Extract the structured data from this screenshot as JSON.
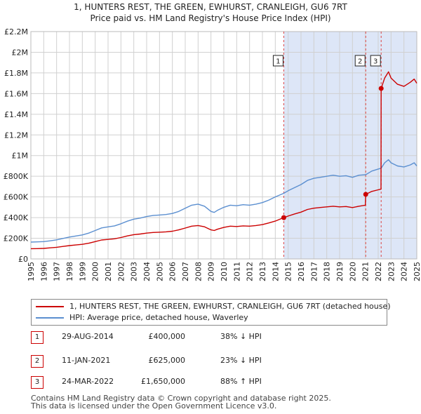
{
  "header": {
    "title_line1": "1, HUNTERS REST, THE GREEN, EWHURST, CRANLEIGH, GU6 7RT",
    "title_line2": "Price paid vs. HM Land Registry's House Price Index (HPI)"
  },
  "colors": {
    "price_paid": "#cc0000",
    "hpi": "#5b8fd0",
    "shade": "#dde6f7",
    "grid": "#d0d0d0",
    "vline": "#dd4444"
  },
  "chart_data": {
    "type": "line",
    "title": "Price paid vs. HM Land Registry's House Price Index (HPI)",
    "xlim": [
      1995,
      2025
    ],
    "ylim": [
      0,
      2200000
    ],
    "x_ticks": [
      "1995",
      "1996",
      "1997",
      "1998",
      "1999",
      "2000",
      "2001",
      "2002",
      "2003",
      "2004",
      "2005",
      "2006",
      "2007",
      "2008",
      "2009",
      "2010",
      "2011",
      "2012",
      "2013",
      "2014",
      "2015",
      "2016",
      "2017",
      "2018",
      "2019",
      "2020",
      "2021",
      "2022",
      "2023",
      "2024",
      "2025"
    ],
    "y_ticks": [
      {
        "value": 0,
        "label": "£0"
      },
      {
        "value": 200000,
        "label": "£200K"
      },
      {
        "value": 400000,
        "label": "£400K"
      },
      {
        "value": 600000,
        "label": "£600K"
      },
      {
        "value": 800000,
        "label": "£800K"
      },
      {
        "value": 1000000,
        "label": "£1M"
      },
      {
        "value": 1200000,
        "label": "£1.2M"
      },
      {
        "value": 1400000,
        "label": "£1.4M"
      },
      {
        "value": 1600000,
        "label": "£1.6M"
      },
      {
        "value": 1800000,
        "label": "£1.8M"
      },
      {
        "value": 2000000,
        "label": "£2M"
      },
      {
        "value": 2200000,
        "label": "£2.2M"
      }
    ],
    "shaded_range": [
      2014.66,
      2025
    ],
    "series": [
      {
        "name": "HPI: Average price, detached house, Waverley",
        "color": "#5b8fd0",
        "points": [
          [
            1995.0,
            163000
          ],
          [
            1995.5,
            165000
          ],
          [
            1996.0,
            168000
          ],
          [
            1996.5,
            175000
          ],
          [
            1997.0,
            185000
          ],
          [
            1997.5,
            198000
          ],
          [
            1998.0,
            212000
          ],
          [
            1998.5,
            222000
          ],
          [
            1999.0,
            232000
          ],
          [
            1999.5,
            250000
          ],
          [
            2000.0,
            275000
          ],
          [
            2000.5,
            300000
          ],
          [
            2001.0,
            310000
          ],
          [
            2001.5,
            320000
          ],
          [
            2002.0,
            340000
          ],
          [
            2002.5,
            365000
          ],
          [
            2003.0,
            385000
          ],
          [
            2003.5,
            395000
          ],
          [
            2004.0,
            410000
          ],
          [
            2004.5,
            420000
          ],
          [
            2005.0,
            425000
          ],
          [
            2005.5,
            430000
          ],
          [
            2006.0,
            440000
          ],
          [
            2006.5,
            460000
          ],
          [
            2007.0,
            490000
          ],
          [
            2007.5,
            520000
          ],
          [
            2008.0,
            530000
          ],
          [
            2008.5,
            510000
          ],
          [
            2009.0,
            460000
          ],
          [
            2009.25,
            450000
          ],
          [
            2009.5,
            470000
          ],
          [
            2010.0,
            500000
          ],
          [
            2010.5,
            520000
          ],
          [
            2011.0,
            515000
          ],
          [
            2011.5,
            525000
          ],
          [
            2012.0,
            520000
          ],
          [
            2012.5,
            530000
          ],
          [
            2013.0,
            545000
          ],
          [
            2013.5,
            570000
          ],
          [
            2014.0,
            600000
          ],
          [
            2014.66,
            635000
          ],
          [
            2015.0,
            660000
          ],
          [
            2015.5,
            690000
          ],
          [
            2016.0,
            720000
          ],
          [
            2016.5,
            760000
          ],
          [
            2017.0,
            780000
          ],
          [
            2017.5,
            790000
          ],
          [
            2018.0,
            800000
          ],
          [
            2018.5,
            810000
          ],
          [
            2019.0,
            800000
          ],
          [
            2019.5,
            805000
          ],
          [
            2020.0,
            790000
          ],
          [
            2020.5,
            810000
          ],
          [
            2021.03,
            815000
          ],
          [
            2021.5,
            850000
          ],
          [
            2022.0,
            870000
          ],
          [
            2022.23,
            878000
          ],
          [
            2022.5,
            930000
          ],
          [
            2022.8,
            960000
          ],
          [
            2023.0,
            930000
          ],
          [
            2023.5,
            900000
          ],
          [
            2024.0,
            890000
          ],
          [
            2024.5,
            910000
          ],
          [
            2024.8,
            930000
          ],
          [
            2025.0,
            900000
          ]
        ]
      },
      {
        "name": "1, HUNTERS REST, THE GREEN, EWHURST, CRANLEIGH, GU6 7RT (detached house)",
        "color": "#cc0000",
        "points": [
          [
            1995.0,
            99000
          ],
          [
            1995.5,
            100000
          ],
          [
            1996.0,
            102000
          ],
          [
            1996.5,
            107000
          ],
          [
            1997.0,
            113000
          ],
          [
            1997.5,
            121000
          ],
          [
            1998.0,
            129000
          ],
          [
            1998.5,
            135000
          ],
          [
            1999.0,
            141000
          ],
          [
            1999.5,
            152000
          ],
          [
            2000.0,
            168000
          ],
          [
            2000.5,
            183000
          ],
          [
            2001.0,
            189000
          ],
          [
            2001.5,
            195000
          ],
          [
            2002.0,
            207000
          ],
          [
            2002.5,
            223000
          ],
          [
            2003.0,
            235000
          ],
          [
            2003.5,
            241000
          ],
          [
            2004.0,
            250000
          ],
          [
            2004.5,
            256000
          ],
          [
            2005.0,
            259000
          ],
          [
            2005.5,
            262000
          ],
          [
            2006.0,
            268000
          ],
          [
            2006.5,
            281000
          ],
          [
            2007.0,
            299000
          ],
          [
            2007.5,
            317000
          ],
          [
            2008.0,
            323000
          ],
          [
            2008.5,
            311000
          ],
          [
            2009.0,
            281000
          ],
          [
            2009.25,
            275000
          ],
          [
            2009.5,
            287000
          ],
          [
            2010.0,
            305000
          ],
          [
            2010.5,
            317000
          ],
          [
            2011.0,
            314000
          ],
          [
            2011.5,
            320000
          ],
          [
            2012.0,
            317000
          ],
          [
            2012.5,
            323000
          ],
          [
            2013.0,
            332000
          ],
          [
            2013.5,
            348000
          ],
          [
            2014.0,
            366000
          ],
          [
            2014.66,
            400000
          ],
          [
            2015.0,
            415000
          ],
          [
            2015.5,
            435000
          ],
          [
            2016.0,
            453000
          ],
          [
            2016.5,
            479000
          ],
          [
            2017.0,
            491000
          ],
          [
            2017.5,
            498000
          ],
          [
            2018.0,
            504000
          ],
          [
            2018.5,
            510000
          ],
          [
            2019.0,
            504000
          ],
          [
            2019.5,
            507000
          ],
          [
            2020.0,
            497000
          ],
          [
            2020.5,
            510000
          ],
          [
            2021.0,
            520000
          ],
          [
            2021.03,
            625000
          ],
          [
            2021.5,
            653000
          ],
          [
            2022.0,
            669000
          ],
          [
            2022.22,
            675000
          ],
          [
            2022.23,
            1650000
          ],
          [
            2022.5,
            1750000
          ],
          [
            2022.8,
            1810000
          ],
          [
            2023.0,
            1750000
          ],
          [
            2023.5,
            1690000
          ],
          [
            2024.0,
            1670000
          ],
          [
            2024.5,
            1710000
          ],
          [
            2024.8,
            1740000
          ],
          [
            2025.0,
            1700000
          ]
        ]
      }
    ],
    "sales": [
      {
        "marker": "1",
        "x": 2014.66,
        "value": 400000
      },
      {
        "marker": "2",
        "x": 2021.03,
        "value": 625000
      },
      {
        "marker": "3",
        "x": 2022.23,
        "value": 1650000
      }
    ]
  },
  "legend": {
    "items": [
      {
        "label": "1, HUNTERS REST, THE GREEN, EWHURST, CRANLEIGH, GU6 7RT (detached house)"
      },
      {
        "label": "HPI: Average price, detached house, Waverley"
      }
    ]
  },
  "transactions": [
    {
      "marker": "1",
      "date": "29-AUG-2014",
      "price": "£400,000",
      "hpi": "38% ↓ HPI"
    },
    {
      "marker": "2",
      "date": "11-JAN-2021",
      "price": "£625,000",
      "hpi": "23% ↓ HPI"
    },
    {
      "marker": "3",
      "date": "24-MAR-2022",
      "price": "£1,650,000",
      "hpi": "88% ↑ HPI"
    }
  ],
  "footer": {
    "line1": "Contains HM Land Registry data © Crown copyright and database right 2025.",
    "line2": "This data is licensed under the Open Government Licence v3.0."
  }
}
